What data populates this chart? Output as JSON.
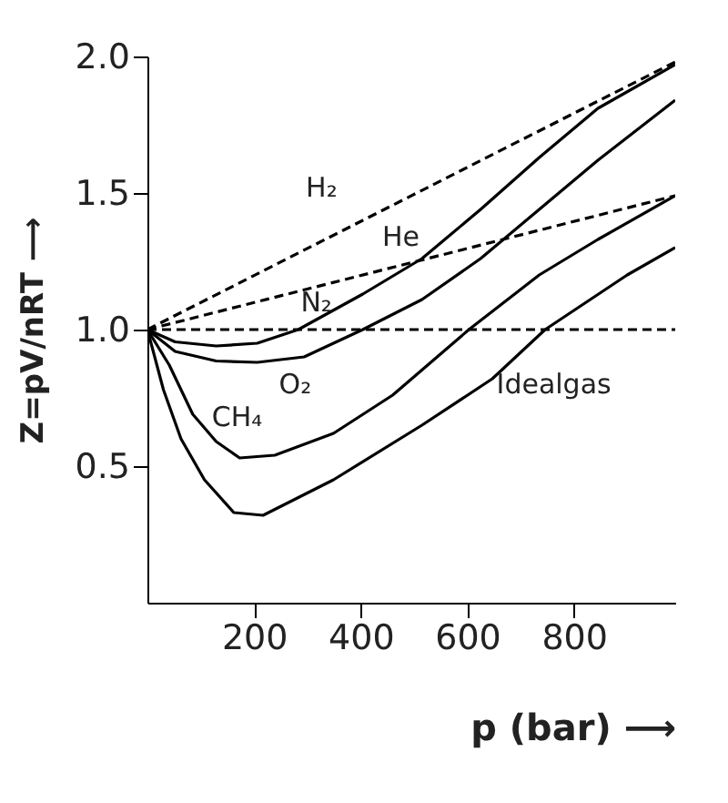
{
  "chart_data": {
    "type": "line",
    "xlabel": "p (bar) ⟶",
    "ylabel": "Z=pV/nRT ⟶",
    "xlim": [
      0,
      990
    ],
    "ylim": [
      0,
      2.0
    ],
    "xticks": [
      200,
      400,
      600,
      800
    ],
    "yticks": [
      {
        "value": 2.0,
        "label": "2.0"
      },
      {
        "value": 1.5,
        "label": "1.5"
      },
      {
        "value": 1.0,
        "label": "1.0"
      },
      {
        "value": 0.5,
        "label": "0.5"
      }
    ],
    "grid": false,
    "marker": "none",
    "series": [
      {
        "color": "#000000",
        "line_style": "dashed",
        "x": [
          0,
          990
        ],
        "values": [
          1.0,
          1.98
        ]
      },
      {
        "color": "#000000",
        "line_style": "dashed",
        "x": [
          0,
          990
        ],
        "values": [
          1.0,
          1.49
        ]
      },
      {
        "color": "#000000",
        "line_style": "dashed",
        "x": [
          0,
          990
        ],
        "values": [
          1.0,
          1.0
        ]
      },
      {
        "color": "#000000",
        "line_style": "solid",
        "x": [
          0,
          52,
          129,
          206,
          283,
          404,
          515,
          625,
          735,
          845,
          990
        ],
        "values": [
          1.0,
          0.955,
          0.94,
          0.95,
          1.0,
          1.13,
          1.26,
          1.44,
          1.63,
          1.81,
          1.97
        ]
      },
      {
        "color": "#000000",
        "line_style": "solid",
        "x": [
          0,
          52,
          129,
          206,
          294,
          404,
          515,
          625,
          735,
          845,
          990
        ],
        "values": [
          1.0,
          0.92,
          0.885,
          0.88,
          0.9,
          1.0,
          1.11,
          1.26,
          1.44,
          1.62,
          1.84
        ]
      },
      {
        "color": "#000000",
        "line_style": "solid",
        "x": [
          0,
          41,
          85,
          129,
          173,
          239,
          349,
          460,
          603,
          735,
          845,
          990
        ],
        "values": [
          1.0,
          0.87,
          0.69,
          0.59,
          0.53,
          0.54,
          0.62,
          0.76,
          1.0,
          1.2,
          1.33,
          1.49
        ]
      },
      {
        "color": "#000000",
        "line_style": "solid",
        "x": [
          0,
          30,
          63,
          107,
          162,
          217,
          349,
          515,
          647,
          746,
          900,
          990
        ],
        "values": [
          1.0,
          0.78,
          0.6,
          0.45,
          0.33,
          0.32,
          0.45,
          0.65,
          0.82,
          1.0,
          1.2,
          1.3
        ]
      }
    ],
    "annotations": [
      "H₂",
      "He",
      "N₂",
      "O₂",
      "CH₄",
      "Idealgas"
    ]
  }
}
